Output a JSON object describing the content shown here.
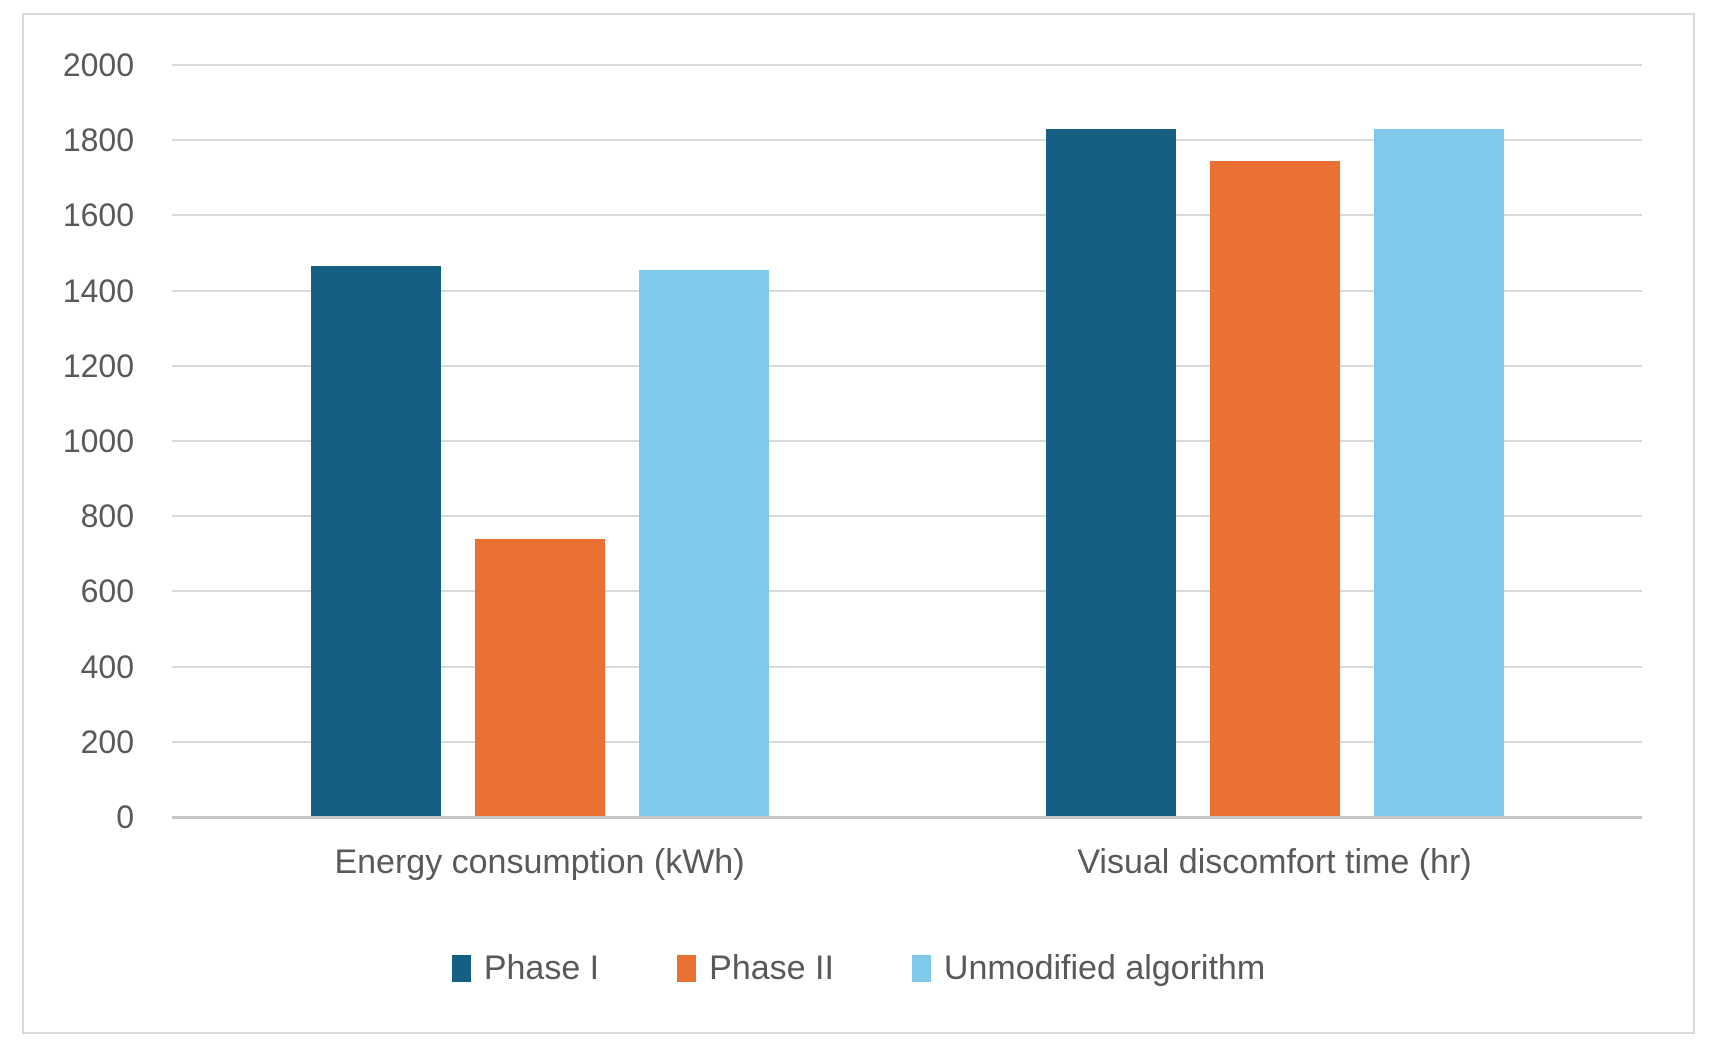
{
  "chart_data": {
    "type": "bar",
    "title": "",
    "categories": [
      "Energy consumption (kWh)",
      "Visual discomfort time (hr)"
    ],
    "series": [
      {
        "name": "Phase I",
        "color": "#156082",
        "values": [
          1465,
          1830
        ]
      },
      {
        "name": "Phase II",
        "color": "#E97132",
        "values": [
          740,
          1745
        ]
      },
      {
        "name": "Unmodified algorithm",
        "color": "#7FC9EA",
        "values": [
          1455,
          1830
        ]
      }
    ],
    "xlabel": "",
    "ylabel": "",
    "ylim": [
      0,
      2000
    ],
    "ytick_step": 200,
    "yticks": [
      2000,
      1800,
      1600,
      1400,
      1200,
      1000,
      800,
      600,
      400,
      200,
      0
    ],
    "grid": true,
    "legend_position": "bottom",
    "colors": {
      "gridline": "#D9D9D9",
      "axis_line": "#C6C6C6",
      "text": "#595959",
      "frame_border": "#D9D9D9",
      "background": "#FFFFFF"
    }
  }
}
